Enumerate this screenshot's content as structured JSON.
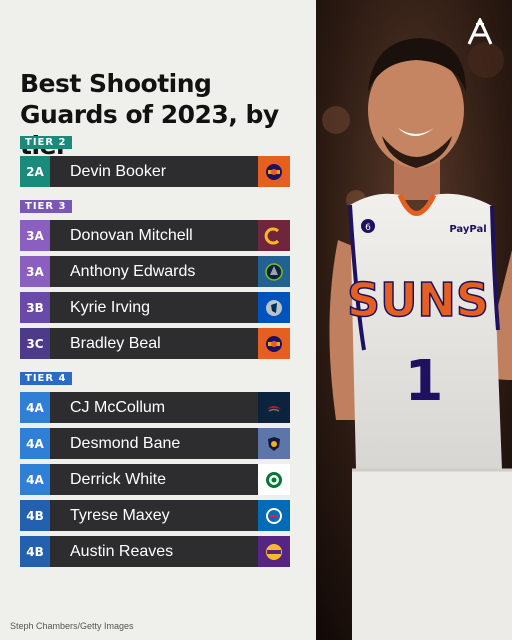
{
  "title": "Best Shooting Guards of 2023, by tier",
  "tiers": [
    {
      "label": "TIER 2",
      "color": "#1a8a7a",
      "players": [
        {
          "code": "2A",
          "name": "Devin Booker",
          "team_icon": "suns-logo-icon",
          "code_color": "#1a8a7a",
          "logo_color": "#e56020"
        }
      ]
    },
    {
      "label": "TIER 3",
      "color": "#7a57b5",
      "players": [
        {
          "code": "3A",
          "name": "Donovan Mitchell",
          "team_icon": "cavaliers-logo-icon",
          "code_color": "#8a5fc0",
          "logo_color": "#6f263d"
        },
        {
          "code": "3A",
          "name": "Anthony Edwards",
          "team_icon": "timberwolves-logo-icon",
          "code_color": "#8a5fc0",
          "logo_color": "#236192"
        },
        {
          "code": "3B",
          "name": "Kyrie Irving",
          "team_icon": "mavericks-logo-icon",
          "code_color": "#6a4aa8",
          "logo_color": "#0053bc"
        },
        {
          "code": "3C",
          "name": "Bradley Beal",
          "team_icon": "suns-logo-icon",
          "code_color": "#4b3b8a",
          "logo_color": "#e56020"
        }
      ]
    },
    {
      "label": "TIER 4",
      "color": "#2a6bc4",
      "players": [
        {
          "code": "4A",
          "name": "CJ McCollum",
          "team_icon": "pelicans-logo-icon",
          "code_color": "#2f7fd6",
          "logo_color": "#0c2340"
        },
        {
          "code": "4A",
          "name": "Desmond Bane",
          "team_icon": "grizzlies-logo-icon",
          "code_color": "#2f7fd6",
          "logo_color": "#5d76a9"
        },
        {
          "code": "4A",
          "name": "Derrick White",
          "team_icon": "celtics-logo-icon",
          "code_color": "#2f7fd6",
          "logo_color": "#007a33"
        },
        {
          "code": "4B",
          "name": "Tyrese Maxey",
          "team_icon": "76ers-logo-icon",
          "code_color": "#2460b0",
          "logo_color": "#006bb6"
        },
        {
          "code": "4B",
          "name": "Austin Reaves",
          "team_icon": "lakers-logo-icon",
          "code_color": "#2460b0",
          "logo_color": "#552583"
        }
      ]
    }
  ],
  "credit": "Steph Chambers/Getty Images",
  "brand": "A",
  "jersey": {
    "team": "SUNS",
    "number": "1",
    "sponsor": "PayPal",
    "patch": "6"
  }
}
